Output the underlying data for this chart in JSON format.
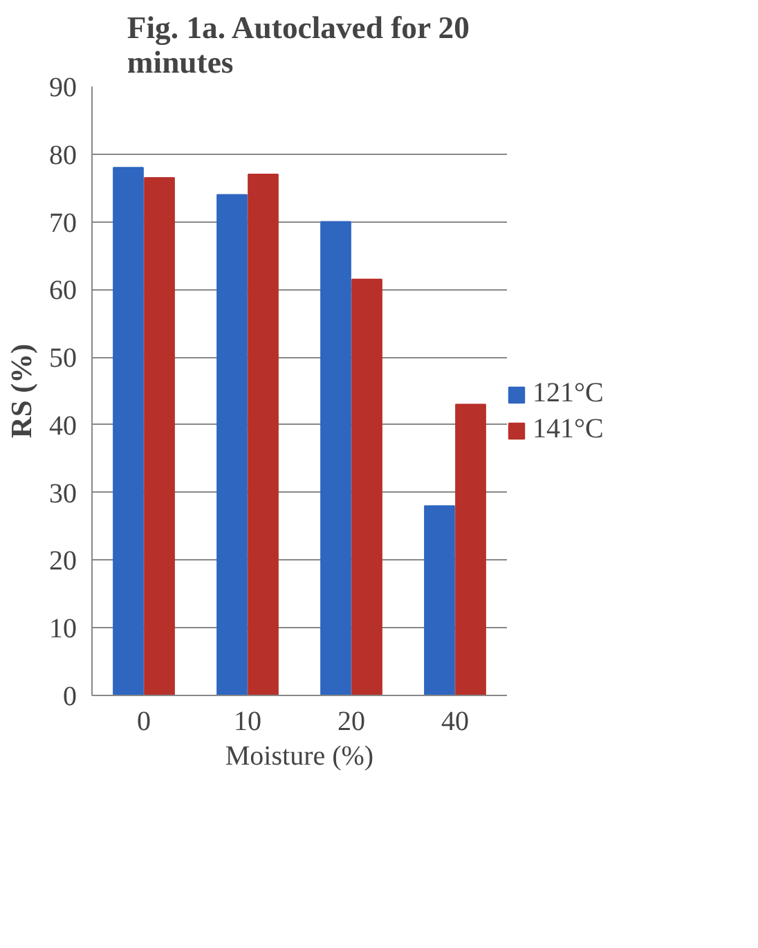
{
  "chart_data": {
    "type": "bar",
    "title": "Fig. 1a. Autoclaved for 20 minutes",
    "xlabel": "Moisture (%)",
    "ylabel": "RS (%)",
    "categories": [
      "0",
      "10",
      "20",
      "40"
    ],
    "series": [
      {
        "name": "121°C",
        "color": "#2e66c0",
        "values": [
          78,
          74,
          70,
          28
        ]
      },
      {
        "name": "141°C",
        "color": "#b8302a",
        "values": [
          76.5,
          77,
          61.5,
          43
        ]
      }
    ],
    "ylim": [
      0,
      90
    ],
    "yticks": [
      0,
      10,
      20,
      30,
      40,
      50,
      60,
      70,
      80,
      90
    ],
    "grid": "y",
    "legend": "right"
  }
}
